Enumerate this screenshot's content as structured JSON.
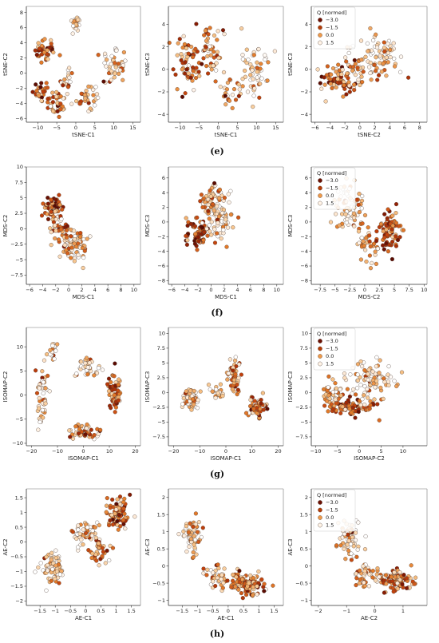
{
  "colors": {
    "cmap": [
      "#5a0b02",
      "#8c1d04",
      "#c2410c",
      "#e57f2c",
      "#f7c48a",
      "#fde8d3",
      "#ffffff"
    ],
    "legend": [
      "#6b1003",
      "#b43c07",
      "#ef9a4a",
      "#fff3e6"
    ]
  },
  "legend": {
    "title": "Q [normed]",
    "entries": [
      "−3.0",
      "−1.5",
      "0.0",
      "1.5"
    ]
  },
  "captions": [
    "(e)",
    "(f)",
    "(g)",
    "(h)"
  ],
  "chart_data": [
    {
      "type": "scatter",
      "xlabel": "tSNE-C1",
      "ylabel": "tSNE-C2",
      "xlim": [
        -13,
        17
      ],
      "ylim": [
        -6.5,
        8.8
      ],
      "xticks": [
        -10,
        -5,
        0,
        5,
        10,
        15
      ],
      "yticks": [
        -6,
        -4,
        -2,
        0,
        2,
        4,
        6,
        8
      ],
      "legend": false,
      "clusters": [
        [
          -8,
          3,
          2.5,
          1.6,
          40,
          -1.2
        ],
        [
          -5,
          -4,
          2.5,
          1.8,
          40,
          -0.6
        ],
        [
          0,
          6.5,
          1.2,
          1.1,
          25,
          0.8
        ],
        [
          10,
          1,
          3,
          2.5,
          45,
          0.4
        ],
        [
          3,
          -3.5,
          3,
          1.3,
          35,
          -0.2
        ],
        [
          -2,
          -1,
          1.8,
          1.5,
          20,
          0.3
        ],
        [
          -9,
          -2,
          2,
          2,
          25,
          -1.5
        ]
      ]
    },
    {
      "type": "scatter",
      "xlabel": "tSNE-C1",
      "ylabel": "tSNE-C3",
      "xlim": [
        -13,
        17
      ],
      "ylim": [
        -4.7,
        5.6
      ],
      "xticks": [
        -10,
        -5,
        0,
        5,
        10,
        15
      ],
      "yticks": [
        -4,
        -2,
        0,
        2,
        4
      ],
      "legend": false,
      "clusters": [
        [
          -8,
          0.5,
          3,
          2.3,
          60,
          -1.2
        ],
        [
          -2,
          1.5,
          3,
          2,
          50,
          -0.3
        ],
        [
          9,
          0,
          3.5,
          2.2,
          60,
          0.4
        ],
        [
          3,
          -2,
          2,
          1.3,
          20,
          -0.5
        ]
      ]
    },
    {
      "type": "scatter",
      "xlabel": "tSNE-C2",
      "ylabel": "tSNE-C3",
      "xlim": [
        -6.5,
        9
      ],
      "ylim": [
        -4.7,
        5.6
      ],
      "xticks": [
        -6,
        -4,
        -2,
        0,
        2,
        4,
        6,
        8
      ],
      "yticks": [
        -4,
        -2,
        0,
        2,
        4
      ],
      "legend": true,
      "clusters": [
        [
          -3,
          -1,
          2,
          1.6,
          70,
          -1.3
        ],
        [
          3,
          1,
          2.8,
          2,
          70,
          0.4
        ],
        [
          0,
          0,
          2.2,
          1.6,
          40,
          -0.2
        ]
      ]
    },
    {
      "type": "scatter",
      "xlabel": "MDS-C1",
      "ylabel": "MDS-C2",
      "xlim": [
        -6.5,
        11
      ],
      "ylim": [
        -9,
        10
      ],
      "xticks": [
        -6,
        -4,
        -2,
        0,
        2,
        4,
        6,
        8,
        10
      ],
      "yticks": [
        -7.5,
        -5.0,
        -2.5,
        0.0,
        2.5,
        5.0,
        7.5,
        10.0
      ],
      "legend": false,
      "clusters": [
        [
          -2.5,
          3.5,
          1.6,
          1.6,
          70,
          -1.3
        ],
        [
          1,
          -3,
          2,
          2.5,
          80,
          0.4
        ],
        [
          -1,
          0,
          1.5,
          2,
          40,
          -0.4
        ]
      ]
    },
    {
      "type": "scatter",
      "xlabel": "MDS-C1",
      "ylabel": "MDS-C3",
      "xlim": [
        -6.5,
        11
      ],
      "ylim": [
        -8.5,
        7.5
      ],
      "xticks": [
        -6,
        -4,
        -2,
        0,
        2,
        4,
        6,
        8,
        10
      ],
      "yticks": [
        -8,
        -6,
        -4,
        -2,
        0,
        2,
        4,
        6
      ],
      "legend": false,
      "clusters": [
        [
          -2,
          -1.5,
          1.6,
          2.3,
          70,
          -1.1
        ],
        [
          1.5,
          1,
          2,
          3,
          80,
          0.3
        ],
        [
          0,
          3,
          1.5,
          2,
          40,
          -0.2
        ]
      ]
    },
    {
      "type": "scatter",
      "xlabel": "MDS-C2",
      "ylabel": "MDS-C3",
      "xlim": [
        -9,
        10.5
      ],
      "ylim": [
        -8.5,
        7.5
      ],
      "xticks": [
        -7.5,
        -5.0,
        -2.5,
        0.0,
        2.5,
        5.0,
        7.5,
        10.0
      ],
      "yticks": [
        -8,
        -6,
        -4,
        -2,
        0,
        2,
        4,
        6
      ],
      "legend": true,
      "clusters": [
        [
          4,
          -1,
          1.6,
          2.5,
          80,
          -1.3
        ],
        [
          -2.5,
          2,
          2.2,
          2.8,
          80,
          0.4
        ],
        [
          0.5,
          -3,
          1.8,
          2,
          40,
          -0.2
        ]
      ]
    },
    {
      "type": "scatter",
      "xlabel": "ISOMAP-C1",
      "ylabel": "ISOMAP-C2",
      "xlim": [
        -22,
        22
      ],
      "ylim": [
        -10.5,
        14
      ],
      "xticks": [
        -20,
        -10,
        0,
        10,
        20
      ],
      "yticks": [
        -10,
        -5,
        0,
        5,
        10
      ],
      "legend": false,
      "clusters": [
        [
          12,
          1,
          2.5,
          3.5,
          60,
          -1.3
        ],
        [
          -16,
          0,
          2.2,
          5,
          50,
          0.3
        ],
        [
          0,
          -7.5,
          6,
          1.5,
          50,
          -0.3
        ],
        [
          2,
          6,
          5,
          2.2,
          40,
          0.2
        ],
        [
          -12,
          9,
          2.2,
          2.2,
          20,
          0.8
        ]
      ]
    },
    {
      "type": "scatter",
      "xlabel": "ISOMAP-C1",
      "ylabel": "ISOMAP-C3",
      "xlim": [
        -22,
        22
      ],
      "ylim": [
        -9,
        11
      ],
      "xticks": [
        -20,
        -10,
        0,
        10,
        20
      ],
      "yticks": [
        -7.5,
        -5.0,
        -2.5,
        0.0,
        2.5,
        5.0,
        7.5,
        10.0
      ],
      "legend": false,
      "clusters": [
        [
          -13,
          -1,
          2.5,
          1.5,
          70,
          0.3
        ],
        [
          3,
          3,
          2.5,
          3,
          50,
          -0.4
        ],
        [
          12,
          -2.5,
          3,
          1.5,
          70,
          -1.3
        ],
        [
          -3,
          0,
          3,
          1.5,
          20,
          0.1
        ]
      ]
    },
    {
      "type": "scatter",
      "xlabel": "ISOMAP-C2",
      "ylabel": "ISOMAP-C3",
      "xlim": [
        -11,
        15.5
      ],
      "ylim": [
        -9,
        11
      ],
      "xticks": [
        -10,
        -5,
        0,
        5,
        10
      ],
      "yticks": [
        -7.5,
        -5.0,
        -2.5,
        0.0,
        2.5,
        5.0,
        7.5,
        10.0
      ],
      "legend": true,
      "clusters": [
        [
          -2,
          -2.5,
          5,
          1.3,
          90,
          -1.2
        ],
        [
          3,
          2,
          6,
          2.8,
          90,
          0.4
        ],
        [
          -6,
          0,
          2.5,
          2,
          40,
          -0.2
        ]
      ]
    },
    {
      "type": "scatter",
      "xlabel": "AE-C1",
      "ylabel": "AE-C2",
      "xlim": [
        -1.95,
        1.8
      ],
      "ylim": [
        -2.15,
        1.8
      ],
      "xticks": [
        -1.5,
        -1.0,
        -0.5,
        0.0,
        0.5,
        1.0,
        1.5
      ],
      "yticks": [
        -2.0,
        -1.5,
        -1.0,
        -0.5,
        0.0,
        0.5,
        1.0,
        1.5
      ],
      "legend": false,
      "clusters": [
        [
          1.1,
          0.9,
          0.35,
          0.45,
          80,
          -1.2
        ],
        [
          -1.1,
          -0.9,
          0.3,
          0.45,
          70,
          0.4
        ],
        [
          0,
          0.3,
          0.45,
          0.4,
          60,
          0.2
        ],
        [
          0.5,
          -0.3,
          0.3,
          0.3,
          30,
          -0.8
        ]
      ]
    },
    {
      "type": "scatter",
      "xlabel": "AE-C1",
      "ylabel": "AE-C3",
      "xlim": [
        -1.95,
        1.8
      ],
      "ylim": [
        -1.15,
        2.25
      ],
      "xticks": [
        -1.5,
        -1.0,
        -0.5,
        0.0,
        0.5,
        1.0,
        1.5
      ],
      "yticks": [
        -1.0,
        -0.5,
        0.0,
        0.5,
        1.0,
        1.5,
        2.0
      ],
      "legend": false,
      "clusters": [
        [
          -1.2,
          0.9,
          0.3,
          0.45,
          70,
          0.3
        ],
        [
          0.6,
          -0.5,
          0.6,
          0.25,
          120,
          -0.9
        ],
        [
          -0.4,
          -0.3,
          0.3,
          0.3,
          30,
          0.2
        ]
      ]
    },
    {
      "type": "scatter",
      "xlabel": "AE-C2",
      "ylabel": "AE-C3",
      "xlim": [
        -2.25,
        1.85
      ],
      "ylim": [
        -1.15,
        2.25
      ],
      "xticks": [
        -2,
        -1,
        0,
        1
      ],
      "yticks": [
        -1.0,
        -0.5,
        0.0,
        0.5,
        1.0,
        1.5,
        2.0
      ],
      "legend": true,
      "clusters": [
        [
          -0.9,
          0.8,
          0.4,
          0.5,
          70,
          0.4
        ],
        [
          0.8,
          -0.4,
          0.6,
          0.25,
          110,
          -1.0
        ],
        [
          -0.3,
          -0.3,
          0.4,
          0.3,
          40,
          -0.2
        ]
      ]
    }
  ]
}
